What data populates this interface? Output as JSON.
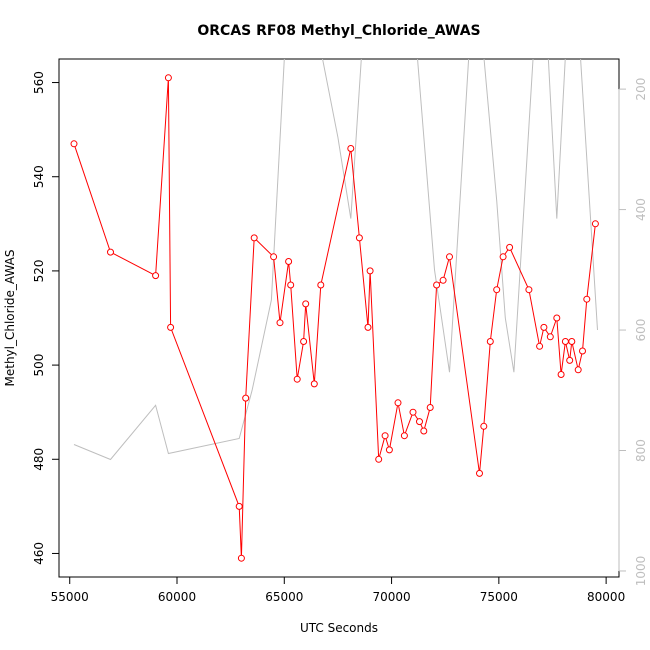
{
  "chart_data": {
    "type": "line",
    "title": "ORCAS RF08 Methyl_Chloride_AWAS",
    "xlabel": "UTC Seconds",
    "ylabel": "Methyl_Chloride_AWAS",
    "xlim": [
      54500,
      80600
    ],
    "ylim": [
      455,
      565
    ],
    "y2lim": [
      1010,
      150
    ],
    "x_ticks": [
      55000,
      60000,
      65000,
      70000,
      75000,
      80000
    ],
    "y_ticks": [
      460,
      480,
      500,
      520,
      540,
      560
    ],
    "y2_ticks": [
      200,
      400,
      600,
      800,
      1000
    ],
    "grid": false,
    "series": [
      {
        "color": "#ff0000",
        "marker": "circle",
        "points": [
          [
            55200,
            547
          ],
          [
            56900,
            524
          ],
          [
            59000,
            519
          ],
          [
            59600,
            561
          ],
          [
            59700,
            508
          ],
          [
            62900,
            470
          ],
          [
            63000,
            459
          ],
          [
            63200,
            493
          ],
          [
            63600,
            527
          ],
          [
            64500,
            523
          ],
          [
            64800,
            509
          ],
          [
            65200,
            522
          ],
          [
            65300,
            517
          ],
          [
            65600,
            497
          ],
          [
            65900,
            505
          ],
          [
            66000,
            513
          ],
          [
            66400,
            496
          ],
          [
            66700,
            517
          ],
          [
            68100,
            546
          ],
          [
            68500,
            527
          ],
          [
            68900,
            508
          ],
          [
            69000,
            520
          ],
          [
            69400,
            480
          ],
          [
            69700,
            485
          ],
          [
            69900,
            482
          ],
          [
            70300,
            492
          ],
          [
            70600,
            485
          ],
          [
            71000,
            490
          ],
          [
            71300,
            488
          ],
          [
            71500,
            486
          ],
          [
            71800,
            491
          ],
          [
            72100,
            517
          ],
          [
            72400,
            518
          ],
          [
            72700,
            523
          ],
          [
            74100,
            477
          ],
          [
            74300,
            487
          ],
          [
            74600,
            505
          ],
          [
            74900,
            516
          ],
          [
            75200,
            523
          ],
          [
            75500,
            525
          ],
          [
            76400,
            516
          ],
          [
            76900,
            504
          ],
          [
            77100,
            508
          ],
          [
            77400,
            506
          ],
          [
            77700,
            510
          ],
          [
            77900,
            498
          ],
          [
            78100,
            505
          ],
          [
            78300,
            501
          ],
          [
            78400,
            505
          ],
          [
            78700,
            499
          ],
          [
            78900,
            503
          ],
          [
            79100,
            514
          ],
          [
            79500,
            530
          ]
        ]
      },
      {
        "color": "#bebebe",
        "axis": "right",
        "points": [
          [
            55200,
            790
          ],
          [
            56900,
            815
          ],
          [
            59000,
            725
          ],
          [
            59600,
            805
          ],
          [
            62900,
            780
          ],
          [
            63500,
            700
          ],
          [
            64400,
            550
          ],
          [
            65000,
            150
          ],
          [
            65700,
            135
          ],
          [
            66200,
            145
          ],
          [
            66700,
            135
          ],
          [
            67500,
            280
          ],
          [
            68100,
            415
          ],
          [
            68600,
            145
          ],
          [
            69300,
            140
          ],
          [
            70000,
            145
          ],
          [
            70500,
            145
          ],
          [
            71200,
            145
          ],
          [
            72000,
            500
          ],
          [
            72700,
            670
          ],
          [
            73600,
            145
          ],
          [
            74300,
            145
          ],
          [
            74900,
            385
          ],
          [
            75300,
            580
          ],
          [
            75700,
            670
          ],
          [
            76600,
            145
          ],
          [
            77300,
            145
          ],
          [
            77700,
            415
          ],
          [
            78100,
            145
          ],
          [
            78800,
            145
          ],
          [
            79600,
            600
          ]
        ]
      }
    ]
  }
}
